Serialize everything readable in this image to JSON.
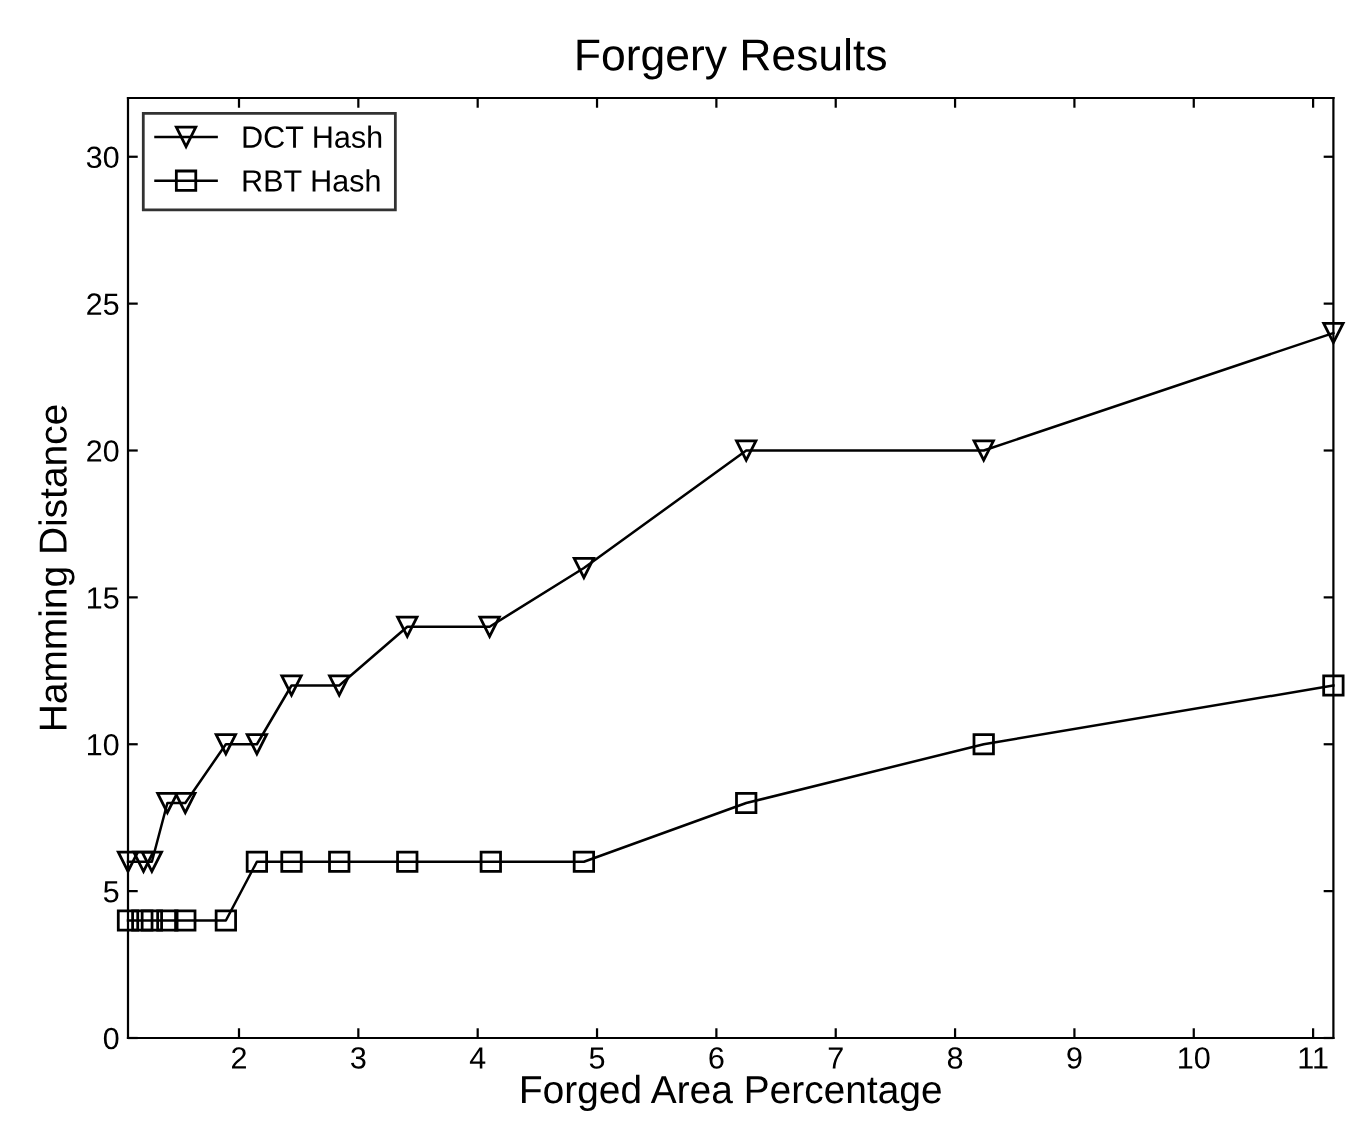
{
  "chart_data": {
    "type": "line",
    "title": "Forgery Results",
    "xlabel": "Forged Area Percentage",
    "ylabel": "Hamming Distance",
    "series": [
      {
        "name": "DCT Hash",
        "color": "#000000",
        "marker": "triangle",
        "x": [
          1.07,
          1.2,
          1.27,
          1.4,
          1.55,
          1.89,
          2.15,
          2.44,
          2.84,
          3.41,
          4.1,
          4.89,
          6.25,
          8.24,
          11.17
        ],
        "values": [
          6,
          6,
          6,
          8,
          8,
          10,
          10,
          12,
          12,
          14,
          14,
          16,
          20,
          20,
          24
        ]
      },
      {
        "name": "RBT Hash",
        "color": "#000000",
        "marker": "square",
        "x": [
          1.07,
          1.19,
          1.27,
          1.4,
          1.55,
          1.89,
          2.15,
          2.44,
          2.84,
          3.41,
          4.11,
          4.89,
          6.25,
          8.24,
          11.17
        ],
        "values": [
          4,
          4,
          4,
          4,
          4,
          4,
          6,
          6,
          6,
          6,
          6,
          6,
          8,
          10,
          12
        ]
      }
    ],
    "xlim": [
      1.07,
      11.17
    ],
    "xticks": [
      2,
      3,
      4,
      5,
      6,
      7,
      8,
      9,
      10,
      11
    ],
    "ylim": [
      0,
      32
    ],
    "yticks": [
      0,
      5,
      10,
      15,
      20,
      25,
      30
    ],
    "grid": false,
    "legend": "top left",
    "line_style": "solid"
  }
}
